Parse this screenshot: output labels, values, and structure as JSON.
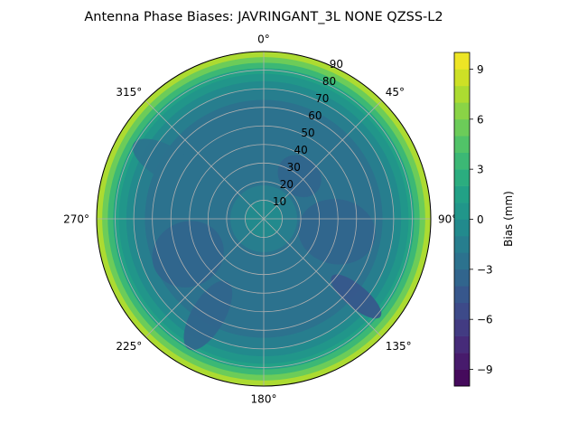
{
  "chart_data": {
    "type": "heatmap",
    "projection": "polar",
    "title": "Antenna Phase Biases: JAVRINGANT_3L   NONE QZSS-L2",
    "theta_direction": "clockwise",
    "theta_zero": "top",
    "theta_ticks": [
      "0°",
      "45°",
      "90°",
      "135°",
      "180°",
      "225°",
      "270°",
      "315°"
    ],
    "r_ticks": [
      "10",
      "20",
      "30",
      "40",
      "50",
      "60",
      "70",
      "80",
      "90"
    ],
    "r_range": [
      0,
      90
    ],
    "grid": true,
    "colormap": "viridis",
    "colorbar": {
      "label": "Bias (mm)",
      "range": [
        -10,
        10
      ],
      "levels": 20,
      "ticks": [
        "−9",
        "−6",
        "−3",
        "0",
        "3",
        "6",
        "9"
      ]
    },
    "rings": [
      {
        "r_outer": 90,
        "value": 7.5
      },
      {
        "r_outer": 87,
        "value": 5.5
      },
      {
        "r_outer": 84,
        "value": 3.5
      },
      {
        "r_outer": 81,
        "value": 1.5
      },
      {
        "r_outer": 78,
        "value": 0.0
      },
      {
        "r_outer": 74,
        "value": -1.0
      },
      {
        "r_outer": 70,
        "value": -2.0
      },
      {
        "r_outer": 64,
        "value": -3.0
      },
      {
        "r_outer": 18,
        "value": -2.0
      },
      {
        "r_outer": 10,
        "value": -0.5
      }
    ],
    "patches": [
      {
        "theta": 100,
        "r": 40,
        "value": -4.0,
        "span_theta": 60,
        "span_r": 35
      },
      {
        "theta": 245,
        "r": 45,
        "value": -4.0,
        "span_theta": 50,
        "span_r": 35
      },
      {
        "theta": 40,
        "r": 30,
        "value": -3.5,
        "span_theta": 40,
        "span_r": 25
      },
      {
        "theta": 130,
        "r": 65,
        "value": -4.5,
        "span_theta": 30,
        "span_r": 12
      },
      {
        "theta": 210,
        "r": 60,
        "value": -3.5,
        "span_theta": 40,
        "span_r": 18
      },
      {
        "theta": 300,
        "r": 60,
        "value": -2.5,
        "span_theta": 40,
        "span_r": 18
      }
    ]
  }
}
